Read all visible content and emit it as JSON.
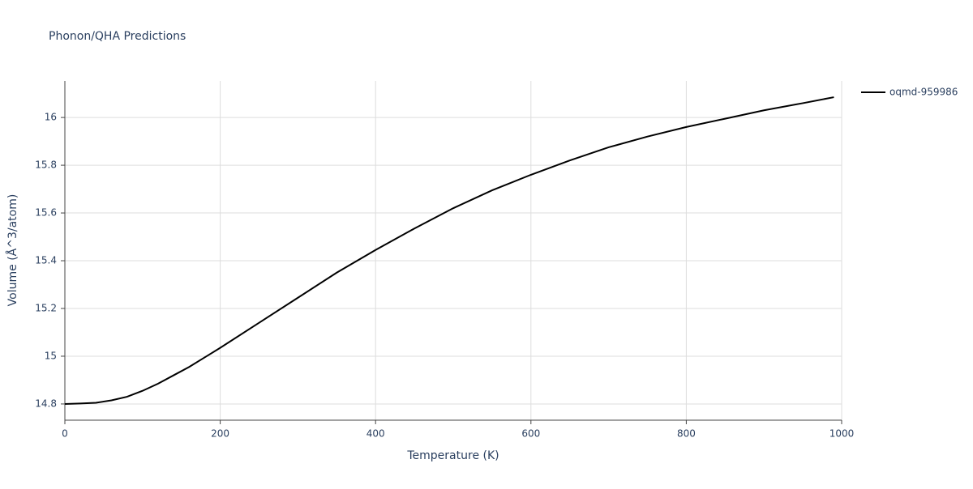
{
  "chart_data": {
    "type": "line",
    "title": "Phonon/QHA Predictions",
    "x_label": "Temperature (K)",
    "y_label": "Volume (Å^3/atom)",
    "x": [
      0,
      20,
      40,
      60,
      80,
      100,
      120,
      140,
      160,
      180,
      200,
      250,
      300,
      350,
      400,
      450,
      500,
      550,
      600,
      650,
      700,
      750,
      800,
      850,
      900,
      950,
      990
    ],
    "series": [
      {
        "name": "oqmd-959986",
        "color": "#000000",
        "values": [
          14.8,
          14.802,
          14.805,
          14.815,
          14.83,
          14.855,
          14.885,
          14.92,
          14.955,
          14.995,
          15.035,
          15.14,
          15.245,
          15.35,
          15.445,
          15.535,
          15.62,
          15.695,
          15.76,
          15.82,
          15.875,
          15.92,
          15.96,
          15.995,
          16.03,
          16.06,
          16.085
        ]
      }
    ],
    "xlim": [
      0,
      1000
    ],
    "xticks": [
      0,
      200,
      400,
      600,
      800,
      1000
    ],
    "ylim": [
      14.732,
      16.153
    ],
    "yticks": [
      {
        "value": 14.8,
        "label": "14.8"
      },
      {
        "value": 15,
        "label": "15"
      },
      {
        "value": 15.2,
        "label": "15.2"
      },
      {
        "value": 15.4,
        "label": "15.4"
      },
      {
        "value": 15.6,
        "label": "15.6"
      },
      {
        "value": 15.8,
        "label": "15.8"
      },
      {
        "value": 16,
        "label": "16"
      }
    ],
    "grid": true,
    "legend": "right"
  }
}
